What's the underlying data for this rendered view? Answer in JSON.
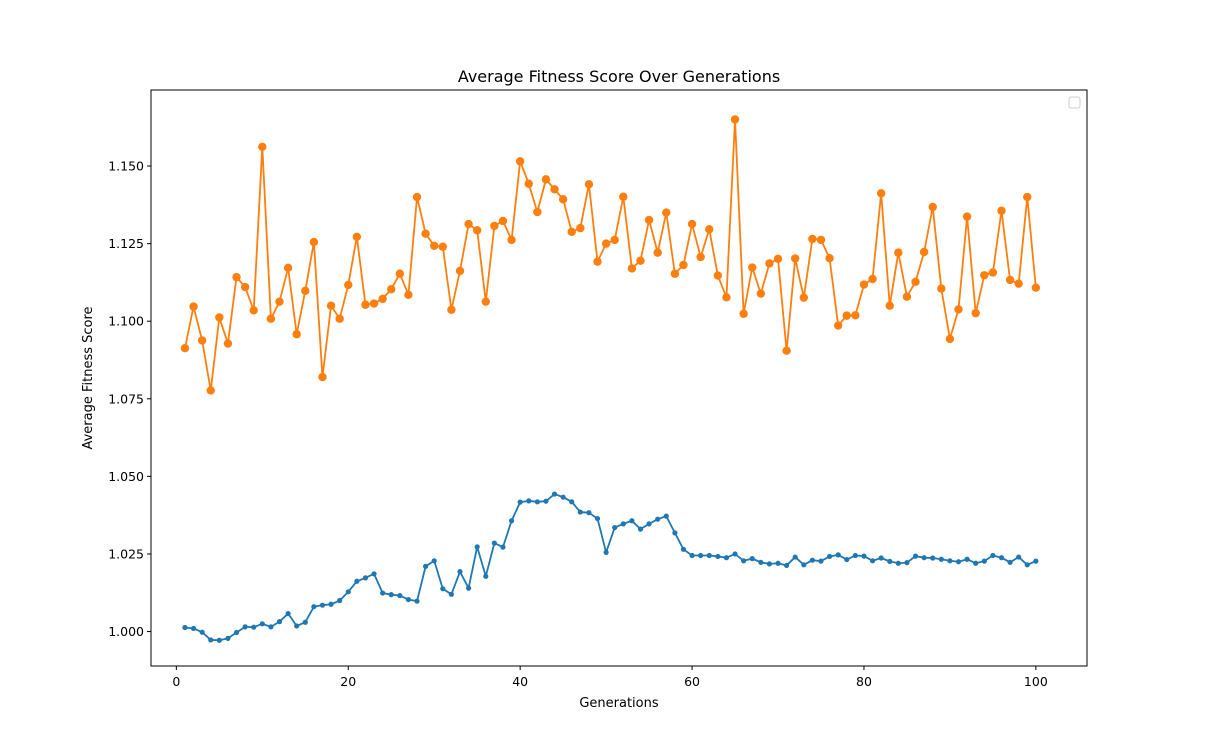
{
  "chart_data": {
    "type": "line",
    "title": "Average Fitness Score Over Generations",
    "xlabel": "Generations",
    "ylabel": "Average Fitness Score",
    "xlim": [
      -2.95,
      105.95
    ],
    "ylim": [
      0.9889,
      1.1745
    ],
    "xticks": [
      0,
      20,
      40,
      60,
      80,
      100
    ],
    "yticks": [
      1.0,
      1.025,
      1.05,
      1.075,
      1.1,
      1.125,
      1.15
    ],
    "ytick_labels": [
      "1.000",
      "1.025",
      "1.050",
      "1.075",
      "1.100",
      "1.125",
      "1.150"
    ],
    "grid": false,
    "legend": {
      "placement": "upper-right",
      "entries": []
    },
    "x": [
      1,
      2,
      3,
      4,
      5,
      6,
      7,
      8,
      9,
      10,
      11,
      12,
      13,
      14,
      15,
      16,
      17,
      18,
      19,
      20,
      21,
      22,
      23,
      24,
      25,
      26,
      27,
      28,
      29,
      30,
      31,
      32,
      33,
      34,
      35,
      36,
      37,
      38,
      39,
      40,
      41,
      42,
      43,
      44,
      45,
      46,
      47,
      48,
      49,
      50,
      51,
      52,
      53,
      54,
      55,
      56,
      57,
      58,
      59,
      60,
      61,
      62,
      63,
      64,
      65,
      66,
      67,
      68,
      69,
      70,
      71,
      72,
      73,
      74,
      75,
      76,
      77,
      78,
      79,
      80,
      81,
      82,
      83,
      84,
      85,
      86,
      87,
      88,
      89,
      90,
      91,
      92,
      93,
      94,
      95,
      96,
      97,
      98,
      99,
      100
    ],
    "series": [
      {
        "color": "#1f77b4",
        "marker_size": 2.6,
        "values": [
          1.0013,
          1.001,
          0.9998,
          0.9973,
          0.9972,
          0.9978,
          0.9997,
          1.0015,
          1.0014,
          1.0025,
          1.0015,
          1.0032,
          1.0058,
          1.0018,
          1.003,
          1.008,
          1.0085,
          1.0088,
          1.01,
          1.0128,
          1.0162,
          1.0173,
          1.0186,
          1.0124,
          1.0119,
          1.0116,
          1.0103,
          1.0098,
          1.021,
          1.0228,
          1.0138,
          1.012,
          1.0193,
          1.014,
          1.0273,
          1.0178,
          1.0285,
          1.0272,
          1.0357,
          1.0417,
          1.0421,
          1.0418,
          1.042,
          1.0443,
          1.0433,
          1.0418,
          1.0385,
          1.0383,
          1.0364,
          1.0255,
          1.0335,
          1.0347,
          1.0357,
          1.033,
          1.0347,
          1.0362,
          1.0372,
          1.0318,
          1.0265,
          1.0245,
          1.0245,
          1.0245,
          1.0242,
          1.0238,
          1.025,
          1.0228,
          1.0235,
          1.0223,
          1.0218,
          1.022,
          1.0213,
          1.024,
          1.0215,
          1.023,
          1.0227,
          1.0242,
          1.0247,
          1.0232,
          1.0245,
          1.0243,
          1.0228,
          1.0237,
          1.0226,
          1.022,
          1.0222,
          1.0243,
          1.0238,
          1.0237,
          1.0233,
          1.0228,
          1.0225,
          1.0233,
          1.022,
          1.0227,
          1.0245,
          1.0238,
          1.0223,
          1.024,
          1.0215,
          1.0227
        ]
      },
      {
        "color": "#ff7f0e",
        "marker_size": 4.2,
        "values": [
          1.0913,
          1.1047,
          1.0938,
          1.0777,
          1.1012,
          1.0928,
          1.1142,
          1.111,
          1.1035,
          1.1562,
          1.1008,
          1.1063,
          1.1172,
          1.0958,
          1.1098,
          1.1255,
          1.082,
          1.105,
          1.1008,
          1.1117,
          1.1272,
          1.1053,
          1.1057,
          1.1072,
          1.1103,
          1.1153,
          1.1085,
          1.14,
          1.1282,
          1.1243,
          1.124,
          1.1037,
          1.1162,
          1.1313,
          1.1293,
          1.1063,
          1.1307,
          1.1323,
          1.1262,
          1.1515,
          1.1443,
          1.1352,
          1.1457,
          1.1425,
          1.1393,
          1.1288,
          1.13,
          1.1441,
          1.1192,
          1.125,
          1.1262,
          1.1401,
          1.117,
          1.1195,
          1.1326,
          1.1221,
          1.135,
          1.1153,
          1.1181,
          1.1313,
          1.1207,
          1.1296,
          1.1147,
          1.1077,
          1.165,
          1.1024,
          1.1173,
          1.1089,
          1.1186,
          1.1201,
          1.0905,
          1.1202,
          1.1076,
          1.1265,
          1.1262,
          1.1203,
          1.0986,
          1.1018,
          1.1019,
          1.1118,
          1.1136,
          1.1412,
          1.105,
          1.1221,
          1.1079,
          1.1127,
          1.1223,
          1.1368,
          1.1105,
          1.0943,
          1.1038,
          1.1337,
          1.1026,
          1.1148,
          1.1157,
          1.1356,
          1.1133,
          1.1121,
          1.14,
          1.1108
        ]
      }
    ]
  }
}
